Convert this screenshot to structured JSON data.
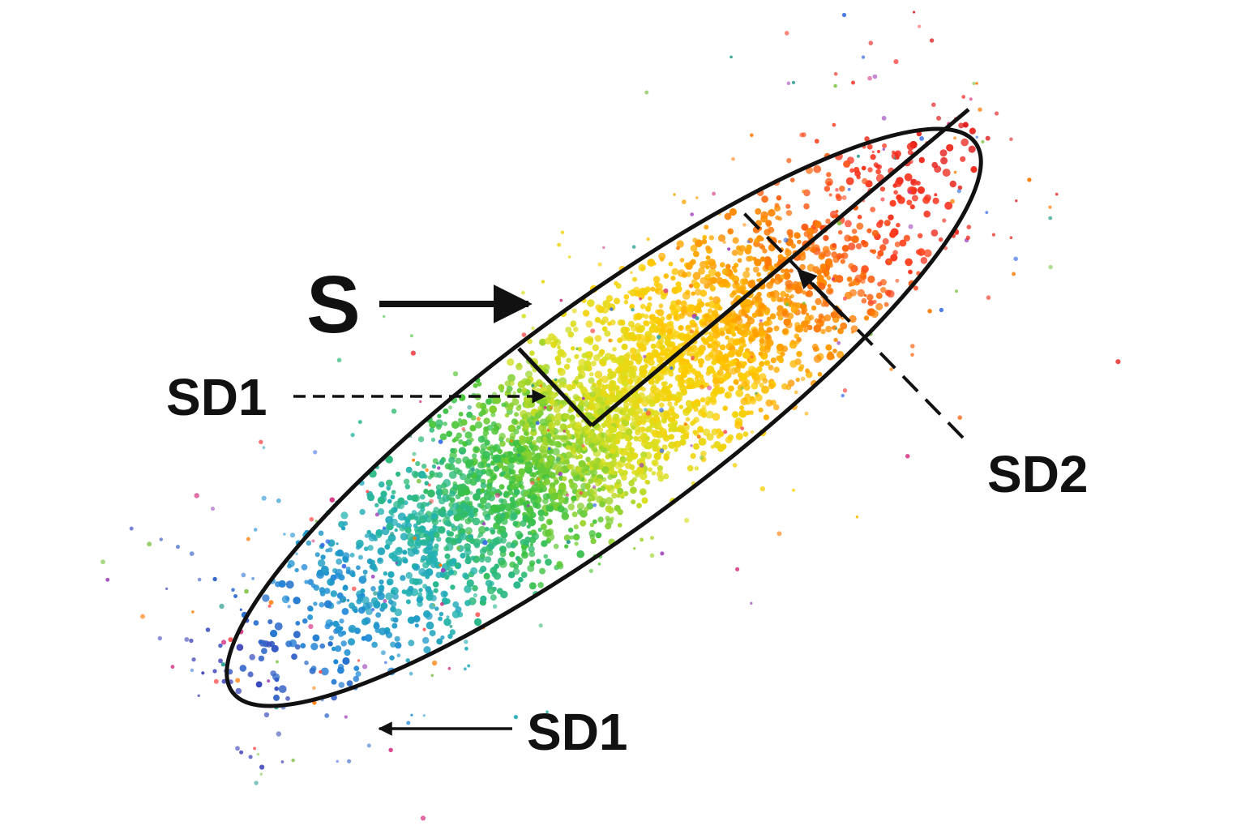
{
  "diagram": {
    "labels": {
      "s": "S",
      "sd1_upper": "SD1",
      "sd1_lower": "SD1",
      "sd2": "SD2"
    },
    "colors": {
      "ink": "#111111",
      "point_gradient": [
        "#3a3fb8",
        "#1e88d8",
        "#22b3b0",
        "#3cc23c",
        "#d8e020",
        "#ffcc00",
        "#ff8a00",
        "#ff3b1f",
        "#e01a1a"
      ],
      "stray_points": [
        "#9b3db8",
        "#ff7a00",
        "#d63384",
        "#2a9d8f",
        "#3a6ee8",
        "#ff4d4d",
        "#7cc242"
      ]
    }
  }
}
